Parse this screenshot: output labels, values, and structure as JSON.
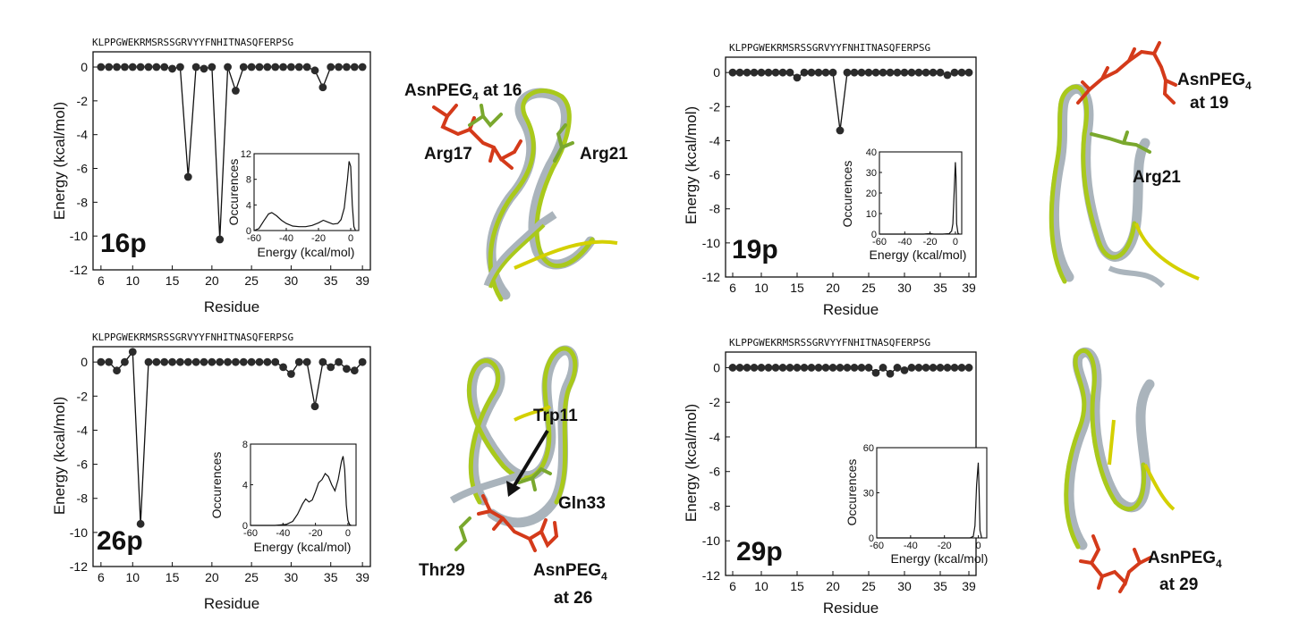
{
  "colors": {
    "point": "#2b2b2b",
    "line": "#111111",
    "ribbon_green": "#a9c91b",
    "ribbon_yellow": "#d4d000",
    "ribbon_gray": "#aab4bc",
    "peg_red": "#d43a1a",
    "sidechain_green": "#7aa82e"
  },
  "chart_data": [
    {
      "type": "line",
      "panel": "16p",
      "sequence": "KLPPGWEKRMSRSSGRVYYFNHITNASQFERPSG",
      "xlabel": "Residue",
      "ylabel": "Energy (kcal/mol)",
      "xticks": [
        6,
        10,
        15,
        20,
        25,
        30,
        35,
        39
      ],
      "yticks": [
        0,
        -2,
        -4,
        -6,
        -8,
        -10,
        -12
      ],
      "xlim": [
        5,
        40
      ],
      "ylim": [
        -12,
        0.9
      ],
      "x": [
        6,
        7,
        8,
        9,
        10,
        11,
        12,
        13,
        14,
        15,
        16,
        17,
        18,
        19,
        20,
        21,
        22,
        23,
        24,
        25,
        26,
        27,
        28,
        29,
        30,
        31,
        32,
        33,
        34,
        35,
        36,
        37,
        38,
        39
      ],
      "y": [
        0,
        0,
        0,
        0,
        0,
        0,
        0,
        0,
        0,
        -0.1,
        0,
        -6.5,
        0,
        -0.1,
        0,
        -10.2,
        0,
        -1.4,
        0,
        0,
        0,
        0,
        0,
        0,
        0,
        0,
        0,
        -0.2,
        -1.2,
        0,
        0,
        0,
        0,
        0
      ],
      "inset": {
        "xlabel": "Energy (kcal/mol)",
        "ylabel": "Occurences",
        "xticks": [
          -60,
          -40,
          -20,
          0
        ],
        "yticks": [
          0,
          4,
          8,
          12
        ],
        "xlim": [
          -60,
          5
        ],
        "ylim": [
          0,
          12
        ],
        "x": [
          -60,
          -57,
          -54,
          -51,
          -49,
          -46,
          -43,
          -40,
          -36,
          -32,
          -28,
          -24,
          -20,
          -17,
          -14,
          -11,
          -8,
          -6,
          -4,
          -2,
          -1,
          0,
          1,
          2,
          3
        ],
        "y": [
          0,
          0.3,
          1.5,
          2.6,
          2.8,
          2.3,
          1.6,
          1.1,
          0.7,
          0.6,
          0.6,
          0.8,
          1.2,
          1.6,
          1.3,
          1.0,
          1.1,
          1.7,
          3.5,
          8,
          10.8,
          10,
          4,
          0.6,
          0
        ]
      }
    },
    {
      "type": "line",
      "panel": "19p",
      "sequence": "KLPPGWEKRMSRSSGRVYYFNHITNASQFERPSG",
      "xlabel": "Residue",
      "ylabel": "Energy (kcal/mol)",
      "xticks": [
        6,
        10,
        15,
        20,
        25,
        30,
        35,
        39
      ],
      "yticks": [
        0,
        -2,
        -4,
        -6,
        -8,
        -10,
        -12
      ],
      "xlim": [
        5,
        40
      ],
      "ylim": [
        -12,
        0.9
      ],
      "x": [
        6,
        7,
        8,
        9,
        10,
        11,
        12,
        13,
        14,
        15,
        16,
        17,
        18,
        19,
        20,
        21,
        22,
        23,
        24,
        25,
        26,
        27,
        28,
        29,
        30,
        31,
        32,
        33,
        34,
        35,
        36,
        37,
        38,
        39
      ],
      "y": [
        0,
        0,
        0,
        0,
        0,
        0,
        0,
        0,
        0,
        -0.3,
        0,
        0,
        0,
        0,
        0,
        -3.4,
        0,
        0,
        0,
        0,
        0,
        0,
        0,
        0,
        0,
        0,
        0,
        0,
        0,
        0,
        -0.15,
        0,
        0,
        0
      ],
      "inset": {
        "xlabel": "Energy (kcal/mol)",
        "ylabel": "Occurences",
        "xticks": [
          -60,
          -40,
          -20,
          0
        ],
        "yticks": [
          0,
          10,
          20,
          30,
          40
        ],
        "xlim": [
          -60,
          5
        ],
        "ylim": [
          0,
          40
        ],
        "x": [
          -60,
          -40,
          -25,
          -20,
          -17,
          -10,
          -5,
          -3,
          -2,
          -1,
          0,
          0.5,
          1,
          2,
          3
        ],
        "y": [
          0,
          0,
          0,
          0.3,
          0,
          0,
          0.2,
          1.5,
          5,
          20,
          35,
          28,
          5,
          0.5,
          0
        ]
      }
    },
    {
      "type": "line",
      "panel": "26p",
      "sequence": "KLPPGWEKRMSRSSGRVYYFNHITNASQFERPSG",
      "xlabel": "Residue",
      "ylabel": "Energy (kcal/mol)",
      "xticks": [
        6,
        10,
        15,
        20,
        25,
        30,
        35,
        39
      ],
      "yticks": [
        0,
        -2,
        -4,
        -6,
        -8,
        -10,
        -12
      ],
      "xlim": [
        5,
        40
      ],
      "ylim": [
        -12,
        0.9
      ],
      "x": [
        6,
        7,
        8,
        9,
        10,
        11,
        12,
        13,
        14,
        15,
        16,
        17,
        18,
        19,
        20,
        21,
        22,
        23,
        24,
        25,
        26,
        27,
        28,
        29,
        30,
        31,
        32,
        33,
        34,
        35,
        36,
        37,
        38,
        39
      ],
      "y": [
        0,
        0,
        -0.5,
        0,
        0.6,
        -9.5,
        0,
        0,
        0,
        0,
        0,
        0,
        0,
        0,
        0,
        0,
        0,
        0,
        0,
        0,
        0,
        0,
        0,
        -0.3,
        -0.7,
        0,
        0,
        -2.6,
        0,
        -0.3,
        0,
        -0.4,
        -0.5,
        0
      ],
      "inset": {
        "xlabel": "Energy (kcal/mol)",
        "ylabel": "Occurences",
        "xticks": [
          -60,
          -40,
          -20,
          0
        ],
        "yticks": [
          0,
          4,
          8
        ],
        "xlim": [
          -60,
          5
        ],
        "ylim": [
          0,
          8
        ],
        "x": [
          -60,
          -45,
          -38,
          -34,
          -31,
          -28,
          -26,
          -24,
          -22,
          -20,
          -18,
          -16,
          -14,
          -12,
          -10,
          -8,
          -6,
          -4,
          -3,
          -2,
          -1,
          0,
          1,
          2
        ],
        "y": [
          0,
          0,
          0.1,
          0.4,
          1.1,
          2.1,
          2.6,
          2.3,
          2.5,
          3.3,
          4.2,
          4.5,
          5.1,
          4.8,
          4.0,
          3.4,
          4.5,
          6.3,
          6.8,
          5.5,
          2.0,
          0.5,
          0.1,
          0
        ]
      }
    },
    {
      "type": "line",
      "panel": "29p",
      "sequence": "KLPPGWEKRMSRSSGRVYYFNHITNASQFERPSG",
      "xlabel": "Residue",
      "ylabel": "Energy (kcal/mol)",
      "xticks": [
        6,
        10,
        15,
        20,
        25,
        30,
        35,
        39
      ],
      "yticks": [
        0,
        -2,
        -4,
        -6,
        -8,
        -10,
        -12
      ],
      "xlim": [
        5,
        40
      ],
      "ylim": [
        -12,
        0.9
      ],
      "x": [
        6,
        7,
        8,
        9,
        10,
        11,
        12,
        13,
        14,
        15,
        16,
        17,
        18,
        19,
        20,
        21,
        22,
        23,
        24,
        25,
        26,
        27,
        28,
        29,
        30,
        31,
        32,
        33,
        34,
        35,
        36,
        37,
        38,
        39
      ],
      "y": [
        0,
        0,
        0,
        0,
        0,
        0,
        0,
        0,
        0,
        0,
        0,
        0,
        0,
        0,
        0,
        0,
        0,
        0,
        0,
        0,
        -0.3,
        0,
        -0.35,
        0,
        -0.15,
        0,
        0,
        0,
        0,
        0,
        0,
        0,
        0,
        0
      ],
      "inset": {
        "xlabel": "Energy (kcal/mol)",
        "ylabel": "Occurences",
        "xticks": [
          -60,
          -40,
          -20,
          0
        ],
        "yticks": [
          0,
          30,
          60
        ],
        "xlim": [
          -60,
          5
        ],
        "ylim": [
          0,
          60
        ],
        "x": [
          -60,
          -20,
          -5,
          -3,
          -2,
          -1,
          0,
          0.5,
          1,
          2
        ],
        "y": [
          0,
          0,
          0,
          1,
          8,
          35,
          50,
          30,
          5,
          0
        ]
      }
    }
  ],
  "structures": [
    {
      "labels": [
        "AsnPEG",
        "4",
        " at 16",
        "Arg17",
        "Arg21"
      ]
    },
    {
      "labels": [
        "AsnPEG",
        "4",
        "at 19",
        "Arg21"
      ]
    },
    {
      "labels": [
        "Trp11",
        "Gln33",
        "Thr29",
        "AsnPEG",
        "4",
        "at 26"
      ]
    },
    {
      "labels": [
        "AsnPEG",
        "4",
        "at 29"
      ]
    }
  ]
}
